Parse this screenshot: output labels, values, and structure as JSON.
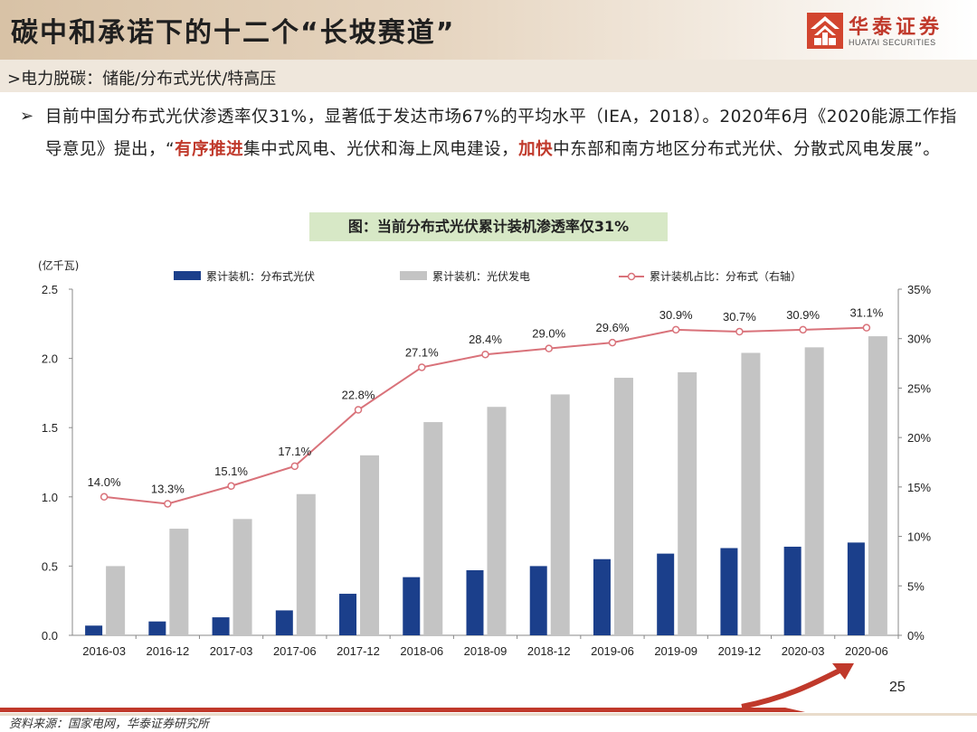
{
  "header": {
    "title": "碳中和承诺下的十二个“长坡赛道”",
    "logo_name": "华泰证券",
    "logo_sub": "HUATAI SECURITIES"
  },
  "subtitle": ">电力脱碳：储能/分布式光伏/特高压",
  "bullet": {
    "arrow": "➢",
    "part1": "目前中国分布式光伏渗透率仅31%，显著低于发达市场67%的平均水平（IEA，2018）。2020年6月《2020能源工作指导意见》提出，“",
    "em1": "有序推进",
    "part2": "集中式风电、光伏和海上风电建设，",
    "em2": "加快",
    "part3": "中东部和南方地区分布式光伏、分散式风电发展”。"
  },
  "caption": "图：当前分布式光伏累计装机渗透率仅31%",
  "page_number": "25",
  "source": "资料来源：国家电网，华泰证券研究所",
  "colors": {
    "distributed": "#1b3f8b",
    "total": "#c4c4c4",
    "ratio": "#d9727a",
    "accent": "#c0392b"
  },
  "chart_data": {
    "type": "bar",
    "categories": [
      "2016-03",
      "2016-12",
      "2017-03",
      "2017-06",
      "2017-12",
      "2018-06",
      "2018-09",
      "2018-12",
      "2019-06",
      "2019-09",
      "2019-12",
      "2020-03",
      "2020-06"
    ],
    "ylabel": "(亿千瓦)",
    "ylim": [
      0,
      2.5
    ],
    "yticks": [
      "0.0",
      "0.5",
      "1.0",
      "1.5",
      "2.0",
      "2.5"
    ],
    "y2lim": [
      0,
      35
    ],
    "y2ticks": [
      "0%",
      "5%",
      "10%",
      "15%",
      "20%",
      "25%",
      "30%",
      "35%"
    ],
    "legend_position": "top",
    "grid": false,
    "series": [
      {
        "name": "累计装机：分布式光伏",
        "type": "bar",
        "values": [
          0.07,
          0.1,
          0.13,
          0.18,
          0.3,
          0.42,
          0.47,
          0.5,
          0.55,
          0.59,
          0.63,
          0.64,
          0.67
        ]
      },
      {
        "name": "累计装机：光伏发电",
        "type": "bar",
        "values": [
          0.5,
          0.77,
          0.84,
          1.02,
          1.3,
          1.54,
          1.65,
          1.74,
          1.86,
          1.9,
          2.04,
          2.08,
          2.16
        ]
      },
      {
        "name": "累计装机占比：分布式（右轴）",
        "type": "line",
        "axis": "right",
        "values": [
          14.0,
          13.3,
          15.1,
          17.1,
          22.8,
          27.1,
          28.4,
          29.0,
          29.6,
          30.9,
          30.7,
          30.9,
          31.1
        ],
        "labels": [
          "14.0%",
          "13.3%",
          "15.1%",
          "17.1%",
          "22.8%",
          "27.1%",
          "28.4%",
          "29.0%",
          "29.6%",
          "30.9%",
          "30.7%",
          "30.9%",
          "31.1%"
        ]
      }
    ]
  }
}
